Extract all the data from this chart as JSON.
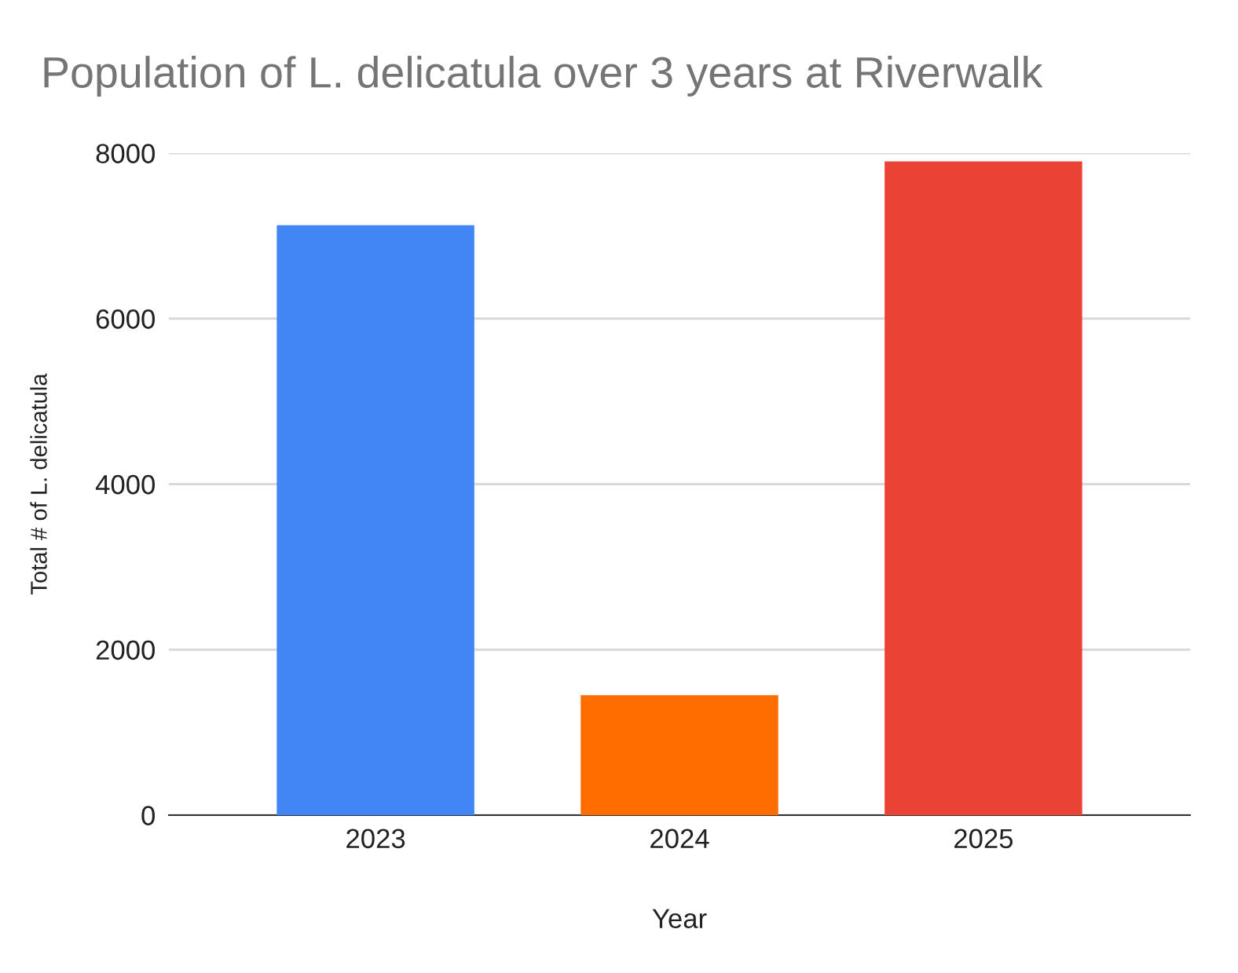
{
  "chart_data": {
    "type": "bar",
    "title": "Population of L. delicatula over 3 years at Riverwalk",
    "xlabel": "Year",
    "ylabel": "Total # of L. delicatula",
    "categories": [
      "2023",
      "2024",
      "2025"
    ],
    "values": [
      7130,
      1450,
      7900
    ],
    "colors": [
      "#4285f4",
      "#ff6d01",
      "#ea4335"
    ],
    "ylim": [
      0,
      8000
    ],
    "yticks": [
      0,
      2000,
      4000,
      6000,
      8000
    ],
    "grid": "y",
    "legend": false
  }
}
